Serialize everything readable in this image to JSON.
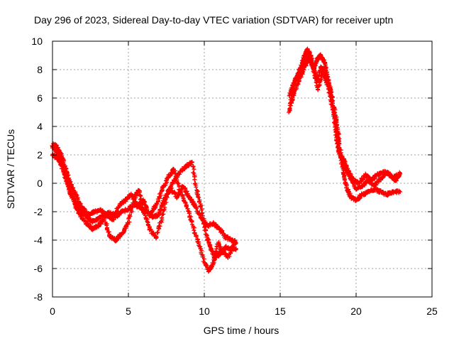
{
  "chart_data": {
    "type": "scatter",
    "title": "Day 296 of 2023, Sidereal Day-to-day VTEC variation (SDTVAR) for receiver uptn",
    "xlabel": "GPS time / hours",
    "ylabel": "SDTVAR / TECUs",
    "xlim": [
      0,
      25
    ],
    "ylim": [
      -8,
      10
    ],
    "xticks": [
      "0",
      "5",
      "10",
      "15",
      "20",
      "25"
    ],
    "yticks": [
      "-8",
      "-6",
      "-4",
      "-2",
      "0",
      "2",
      "4",
      "6",
      "8",
      "10"
    ],
    "grid": true,
    "marker": "+",
    "color": "#ff0000",
    "series": [
      {
        "name": "SDTVAR",
        "segments": [
          [
            [
              0.0,
              2.6
            ],
            [
              0.2,
              2.4
            ],
            [
              0.4,
              2.0
            ],
            [
              0.6,
              1.5
            ],
            [
              0.8,
              0.8
            ],
            [
              1.0,
              0.0
            ],
            [
              1.2,
              -0.8
            ],
            [
              1.5,
              -1.3
            ],
            [
              1.8,
              -1.8
            ],
            [
              2.2,
              -2.3
            ],
            [
              2.6,
              -2.7
            ],
            [
              3.0,
              -2.5
            ],
            [
              3.4,
              -2.2
            ],
            [
              3.8,
              -2.1
            ],
            [
              4.2,
              -2.3
            ],
            [
              4.6,
              -2.0
            ],
            [
              5.0,
              -1.8
            ],
            [
              5.4,
              -1.5
            ],
            [
              5.8,
              -1.7
            ],
            [
              6.2,
              -2.0
            ],
            [
              6.6,
              -2.4
            ],
            [
              7.0,
              -2.2
            ],
            [
              7.4,
              -1.0
            ],
            [
              7.8,
              -0.4
            ],
            [
              8.2,
              -1.0
            ],
            [
              8.6,
              -0.2
            ],
            [
              9.0,
              -1.0
            ],
            [
              9.4,
              -1.6
            ],
            [
              9.8,
              -2.5
            ],
            [
              10.2,
              -3.0
            ],
            [
              10.6,
              -2.8
            ],
            [
              11.0,
              -3.2
            ],
            [
              11.4,
              -3.8
            ],
            [
              11.8,
              -4.0
            ],
            [
              12.1,
              -4.2
            ]
          ],
          [
            [
              0.0,
              2.0
            ],
            [
              0.3,
              1.8
            ],
            [
              0.6,
              1.2
            ],
            [
              0.9,
              0.3
            ],
            [
              1.2,
              -0.6
            ],
            [
              1.5,
              -1.6
            ],
            [
              1.8,
              -2.2
            ],
            [
              2.2,
              -2.8
            ],
            [
              2.6,
              -3.2
            ],
            [
              3.0,
              -3.0
            ],
            [
              3.4,
              -2.5
            ],
            [
              3.8,
              -3.8
            ],
            [
              4.2,
              -4.0
            ],
            [
              4.6,
              -3.5
            ],
            [
              5.0,
              -2.8
            ],
            [
              5.4,
              -1.0
            ],
            [
              5.7,
              -0.5
            ],
            [
              6.0,
              -2.0
            ],
            [
              6.4,
              -3.2
            ],
            [
              6.8,
              -3.8
            ],
            [
              7.2,
              -2.5
            ],
            [
              7.6,
              -0.6
            ],
            [
              8.0,
              0.2
            ],
            [
              8.4,
              0.8
            ],
            [
              8.8,
              1.2
            ],
            [
              9.2,
              1.5
            ],
            [
              9.5,
              -0.5
            ],
            [
              9.8,
              -1.8
            ],
            [
              10.1,
              -3.5
            ],
            [
              10.4,
              -4.5
            ],
            [
              10.7,
              -5.2
            ],
            [
              11.0,
              -5.0
            ],
            [
              11.4,
              -4.5
            ],
            [
              11.8,
              -4.6
            ],
            [
              12.1,
              -4.6
            ]
          ],
          [
            [
              0.1,
              2.8
            ],
            [
              0.4,
              2.4
            ],
            [
              0.7,
              1.6
            ],
            [
              1.0,
              0.6
            ],
            [
              1.3,
              -0.3
            ],
            [
              1.6,
              -1.0
            ],
            [
              2.0,
              -1.8
            ],
            [
              2.4,
              -2.2
            ],
            [
              2.8,
              -2.0
            ],
            [
              3.2,
              -1.9
            ],
            [
              3.6,
              -2.3
            ],
            [
              4.0,
              -2.6
            ],
            [
              4.4,
              -1.5
            ],
            [
              4.8,
              -1.2
            ],
            [
              5.2,
              -0.8
            ],
            [
              5.6,
              -1.6
            ],
            [
              6.0,
              -1.2
            ],
            [
              6.4,
              -2.2
            ],
            [
              6.8,
              -1.6
            ],
            [
              7.2,
              -0.5
            ],
            [
              7.6,
              0.4
            ],
            [
              8.0,
              1.0
            ],
            [
              8.4,
              -0.5
            ],
            [
              8.8,
              -1.5
            ],
            [
              9.2,
              -2.8
            ],
            [
              9.6,
              -4.2
            ],
            [
              10.0,
              -5.5
            ],
            [
              10.3,
              -6.2
            ],
            [
              10.6,
              -5.6
            ],
            [
              10.9,
              -4.2
            ],
            [
              11.2,
              -4.8
            ],
            [
              11.6,
              -5.2
            ],
            [
              12.0,
              -4.0
            ]
          ],
          [
            [
              15.6,
              5.0
            ],
            [
              15.8,
              6.5
            ],
            [
              16.0,
              7.2
            ],
            [
              16.2,
              7.6
            ],
            [
              16.4,
              8.0
            ],
            [
              16.6,
              9.0
            ],
            [
              16.8,
              9.4
            ],
            [
              17.0,
              9.0
            ],
            [
              17.2,
              8.0
            ],
            [
              17.4,
              8.6
            ],
            [
              17.6,
              9.0
            ],
            [
              17.8,
              8.8
            ],
            [
              18.0,
              8.2
            ],
            [
              18.2,
              7.0
            ],
            [
              18.4,
              6.0
            ],
            [
              18.6,
              4.2
            ],
            [
              18.8,
              2.5
            ],
            [
              19.0,
              1.8
            ],
            [
              19.2,
              0.6
            ],
            [
              19.4,
              -0.4
            ],
            [
              19.7,
              -1.0
            ],
            [
              20.0,
              -1.2
            ],
            [
              20.4,
              -0.8
            ],
            [
              20.8,
              -0.6
            ],
            [
              21.2,
              -0.4
            ],
            [
              21.6,
              -0.6
            ],
            [
              22.0,
              -0.8
            ],
            [
              22.4,
              -0.6
            ],
            [
              22.9,
              -0.6
            ]
          ],
          [
            [
              15.6,
              6.2
            ],
            [
              15.9,
              7.0
            ],
            [
              16.2,
              7.8
            ],
            [
              16.5,
              8.6
            ],
            [
              16.8,
              9.0
            ],
            [
              17.1,
              8.4
            ],
            [
              17.4,
              7.2
            ],
            [
              17.7,
              8.2
            ],
            [
              18.0,
              7.6
            ],
            [
              18.3,
              6.6
            ],
            [
              18.6,
              5.0
            ],
            [
              18.8,
              3.8
            ],
            [
              19.0,
              2.0
            ],
            [
              19.3,
              1.0
            ],
            [
              19.6,
              0.4
            ],
            [
              20.0,
              -0.4
            ],
            [
              20.4,
              -0.2
            ],
            [
              20.8,
              0.2
            ],
            [
              21.2,
              -0.2
            ],
            [
              21.6,
              0.3
            ],
            [
              22.0,
              0.8
            ],
            [
              22.4,
              0.4
            ],
            [
              22.8,
              0.6
            ]
          ],
          [
            [
              15.7,
              5.6
            ],
            [
              16.0,
              6.6
            ],
            [
              16.3,
              7.4
            ],
            [
              16.6,
              8.2
            ],
            [
              16.9,
              8.8
            ],
            [
              17.2,
              8.2
            ],
            [
              17.5,
              6.6
            ],
            [
              17.8,
              7.8
            ],
            [
              18.1,
              7.0
            ],
            [
              18.4,
              5.6
            ],
            [
              18.7,
              4.0
            ],
            [
              18.9,
              2.0
            ],
            [
              19.2,
              1.6
            ],
            [
              19.5,
              0.8
            ],
            [
              19.8,
              0.2
            ],
            [
              20.2,
              0.0
            ],
            [
              20.6,
              0.6
            ],
            [
              21.0,
              0.2
            ],
            [
              21.4,
              0.6
            ],
            [
              21.8,
              0.8
            ],
            [
              22.2,
              0.6
            ],
            [
              22.6,
              0.2
            ],
            [
              22.9,
              0.7
            ]
          ]
        ]
      }
    ]
  }
}
